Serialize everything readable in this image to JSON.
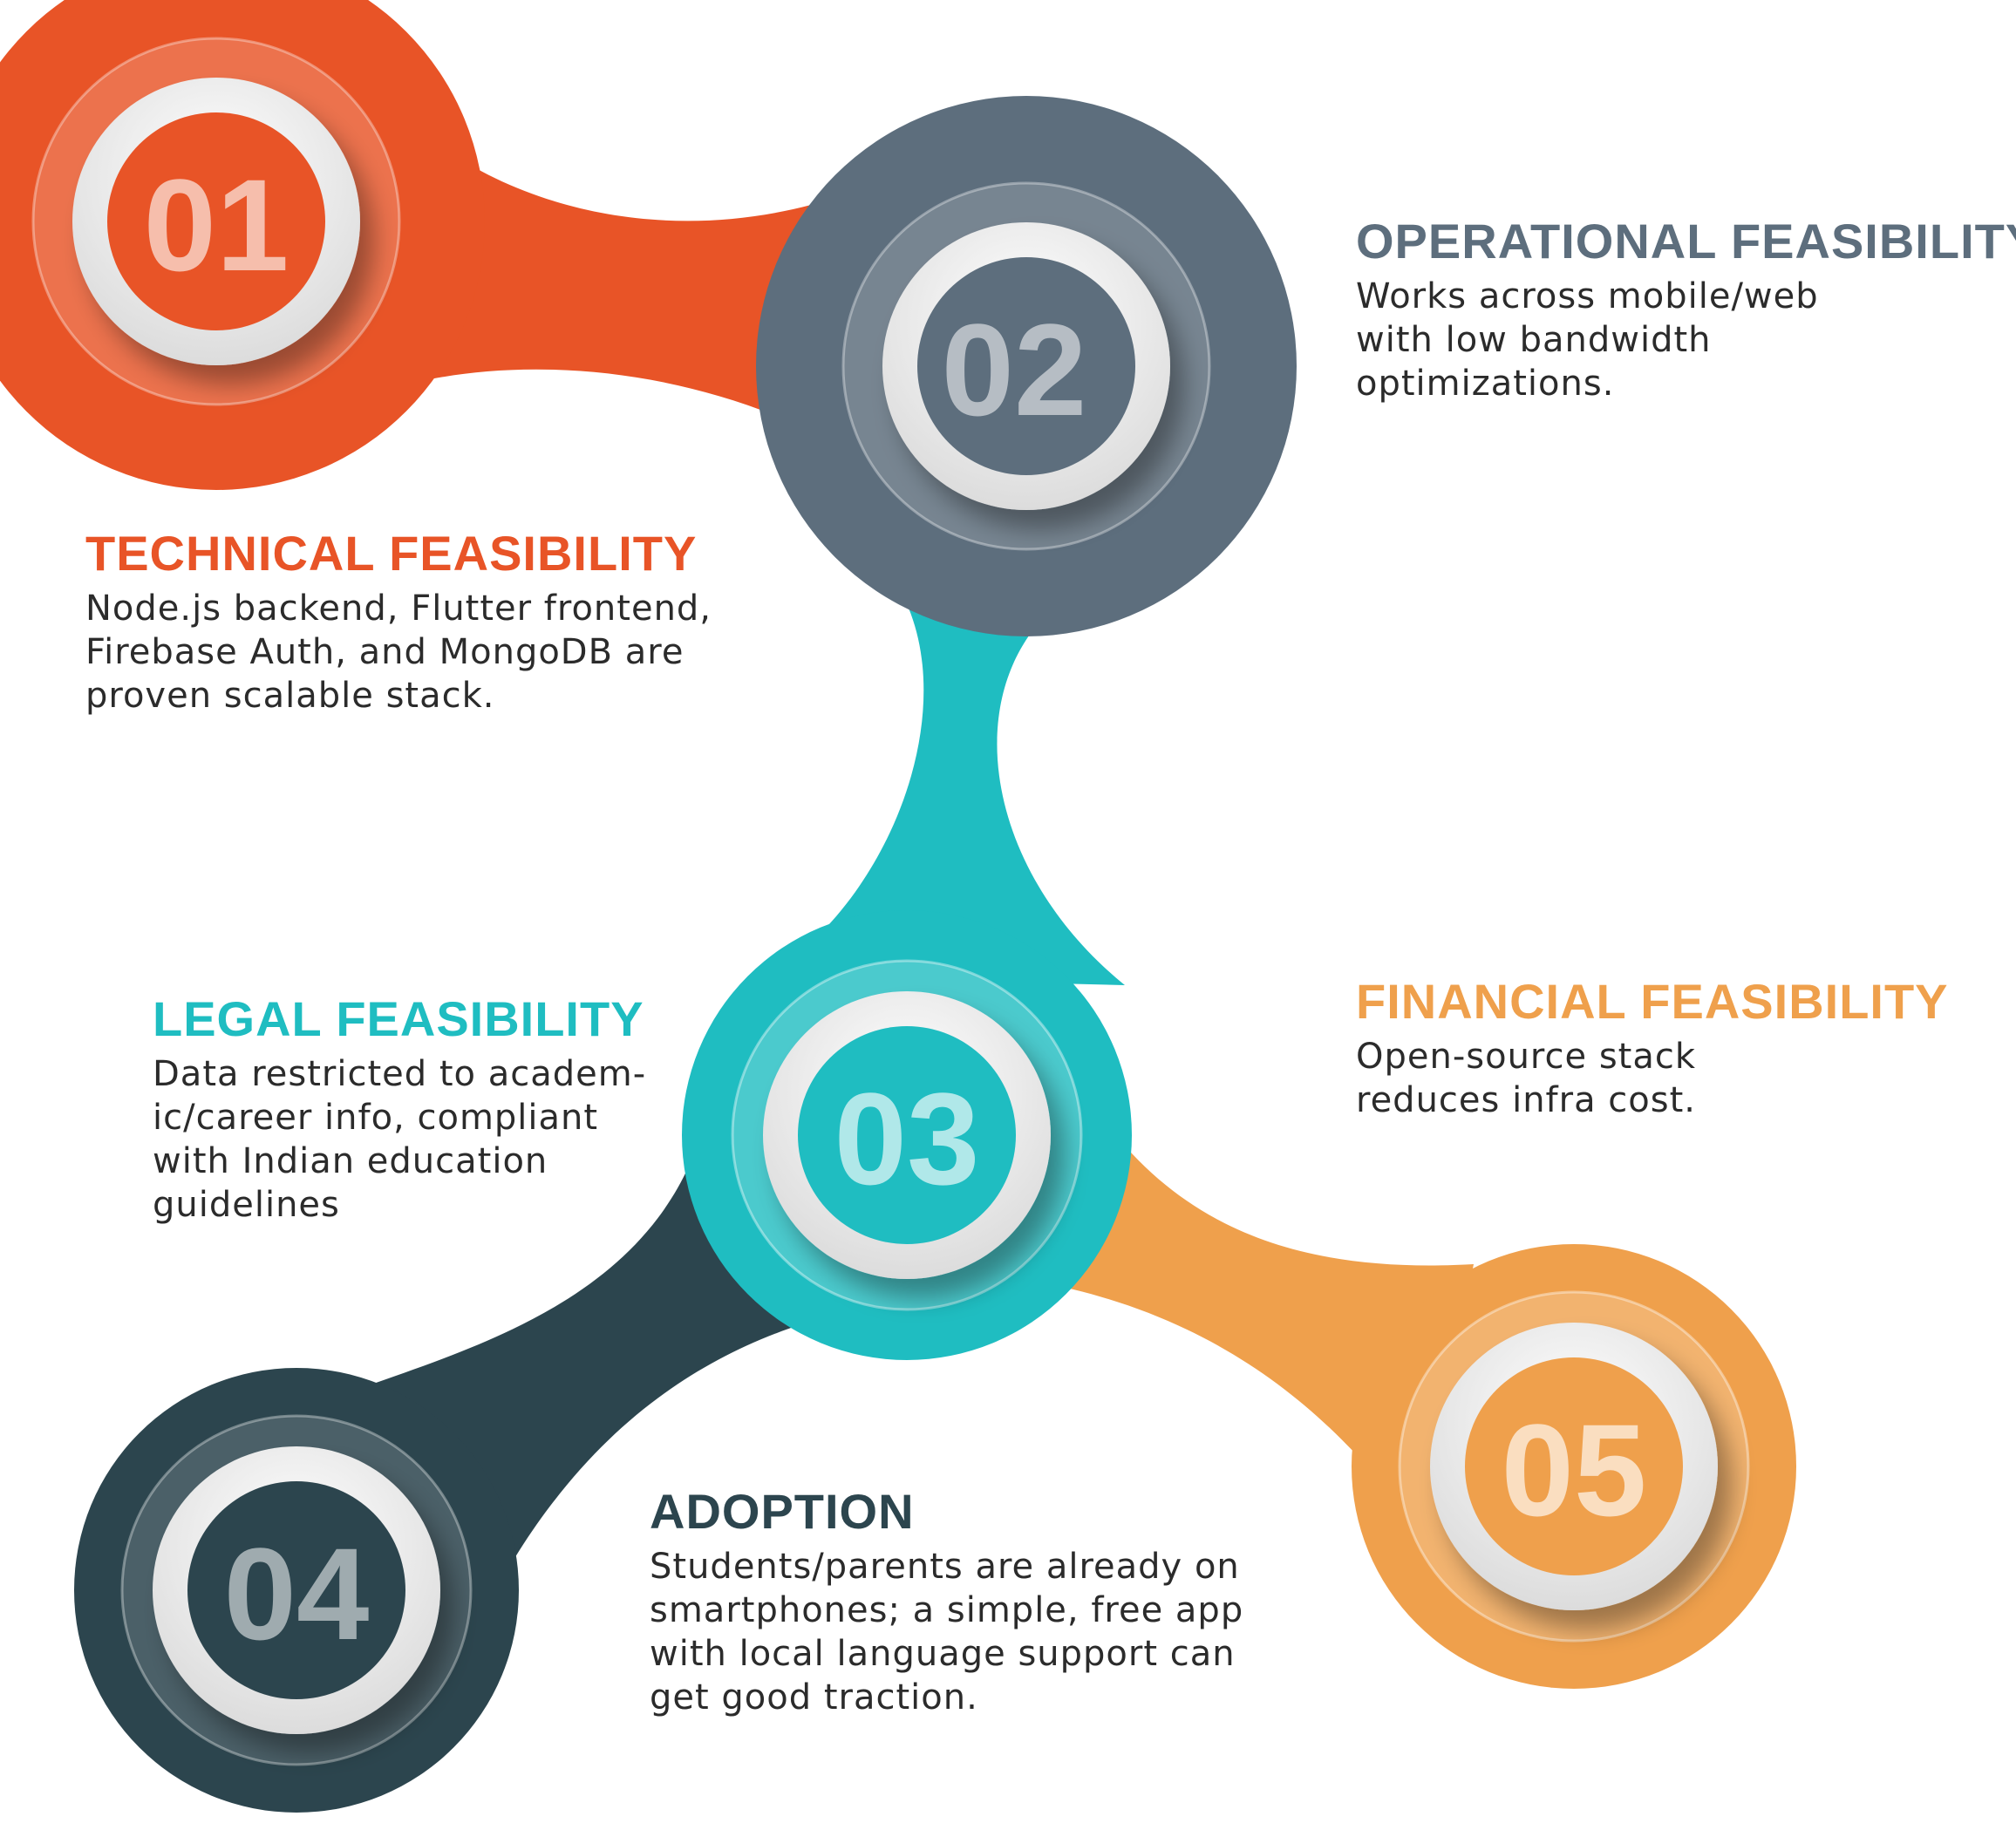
{
  "colors": {
    "orange": "#e85427",
    "slate": "#5d6e7d",
    "teal": "#1fbdc1",
    "dark": "#2c454e",
    "amber": "#efa04c",
    "text": "#2b2b2b"
  },
  "steps": [
    {
      "number": "01",
      "title": "TECHNICAL FEASIBILITY",
      "lines": [
        "Node.js backend, Flutter frontend,",
        "Firebase Auth, and MongoDB are",
        "proven scalable stack."
      ]
    },
    {
      "number": "02",
      "title": "OPERATIONAL FEASIBILITY",
      "lines": [
        "Works across mobile/web",
        "with low bandwidth",
        "optimizations."
      ]
    },
    {
      "number": "03",
      "title": "LEGAL FEASIBILITY",
      "lines": [
        "Data restricted to academ-",
        "ic/career info, compliant",
        "with Indian education",
        "guidelines"
      ]
    },
    {
      "number": "04",
      "title": "ADOPTION",
      "lines": [
        "Students/parents are already on",
        "smartphones; a simple, free app",
        "with local language support can",
        "get good traction."
      ]
    },
    {
      "number": "05",
      "title": "FINANCIAL FEASIBILITY",
      "lines": [
        "Open-source stack",
        "reduces infra cost."
      ]
    }
  ]
}
